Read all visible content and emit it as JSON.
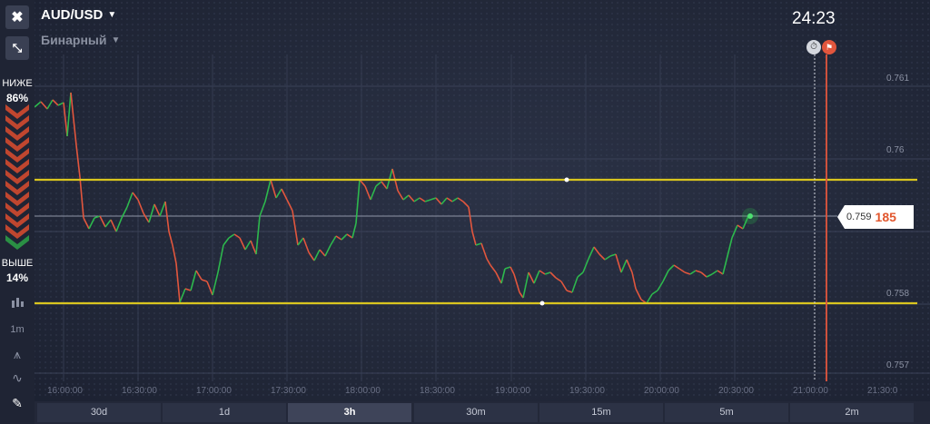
{
  "asset": {
    "name": "AUD/USD",
    "option_type": "Бинарный"
  },
  "sidebar": {
    "lower_label": "НИЖЕ",
    "lower_pct": "86%",
    "higher_label": "ВЫШЕ",
    "higher_pct": "14%",
    "interval": "1m"
  },
  "timer": "24:23",
  "current_price": {
    "main": "0.759",
    "highlight": "185"
  },
  "y_ticks": [
    "0.761",
    "0.76",
    "0.758",
    "0.757"
  ],
  "x_ticks": [
    "16:00:00",
    "16:30:00",
    "17:00:00",
    "17:30:00",
    "18:00:00",
    "18:30:00",
    "19:00:00",
    "19:30:00",
    "20:00:00",
    "20:30:00",
    "21:00:00",
    "21:30:0"
  ],
  "timeframes": [
    "30d",
    "1d",
    "3h",
    "30m",
    "15m",
    "5m",
    "2m"
  ],
  "active_timeframe": "3h",
  "colors": {
    "up": "#2db84d",
    "down": "#e2563d",
    "level": "#d9c51f",
    "expiry": "#e2563d"
  },
  "icons": {
    "close": "close-icon",
    "collapse": "collapse-icon",
    "chart_type": "candles-icon",
    "indicators": "indicator-icon",
    "trend": "trend-icon",
    "draw": "pencil-icon",
    "timer": "stopwatch-icon",
    "flag": "finish-flag-icon"
  }
}
